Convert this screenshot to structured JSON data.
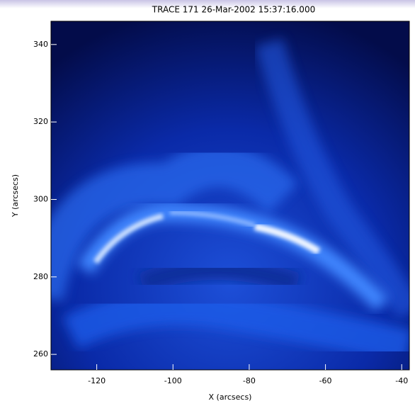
{
  "chart_data": {
    "type": "image",
    "title": "TRACE 171 26-Mar-2002 15:37:16.000",
    "x_label": "X (arcsecs)",
    "y_label": "Y (arcsecs)",
    "xlim": [
      -132,
      -38
    ],
    "ylim": [
      256,
      346
    ],
    "xticks": [
      -120,
      -100,
      -80,
      -60,
      -40
    ],
    "yticks": [
      260,
      280,
      300,
      320,
      340
    ]
  }
}
